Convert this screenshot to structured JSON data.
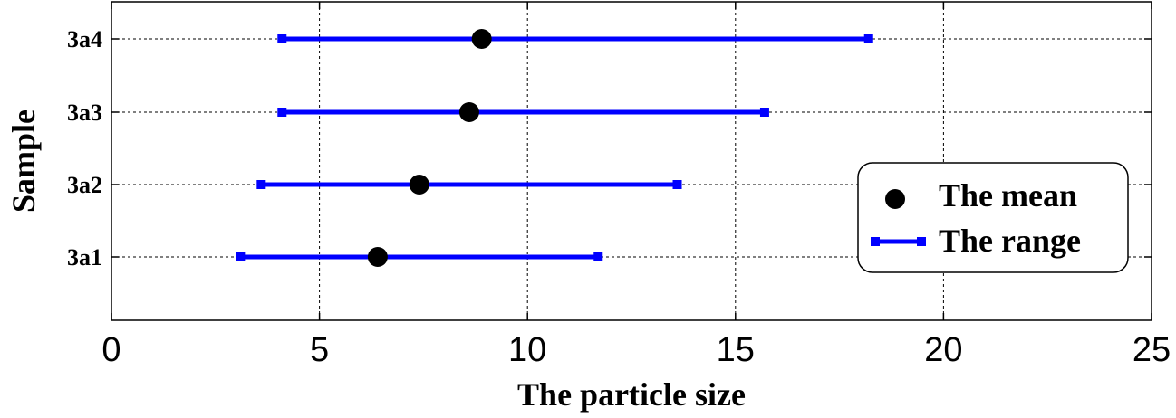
{
  "chart_data": {
    "type": "scatter",
    "title": "",
    "xlabel": "The particle size",
    "ylabel": "Sample",
    "xlim": [
      0,
      25
    ],
    "xticks": [
      0,
      5,
      10,
      15,
      20,
      25
    ],
    "categories": [
      "3a1",
      "3a2",
      "3a3",
      "3a4"
    ],
    "grid": true,
    "legend": {
      "placement": "bottom-right",
      "entries": [
        "The mean",
        "The range"
      ]
    },
    "series": [
      {
        "name": "The mean",
        "color": "#000000",
        "values": [
          6.4,
          7.4,
          8.6,
          8.9
        ]
      },
      {
        "name": "The range",
        "color": "#0000FF",
        "values": [
          [
            3.1,
            11.7
          ],
          [
            3.6,
            13.6
          ],
          [
            4.1,
            15.7
          ],
          [
            4.1,
            18.2
          ]
        ]
      }
    ]
  }
}
